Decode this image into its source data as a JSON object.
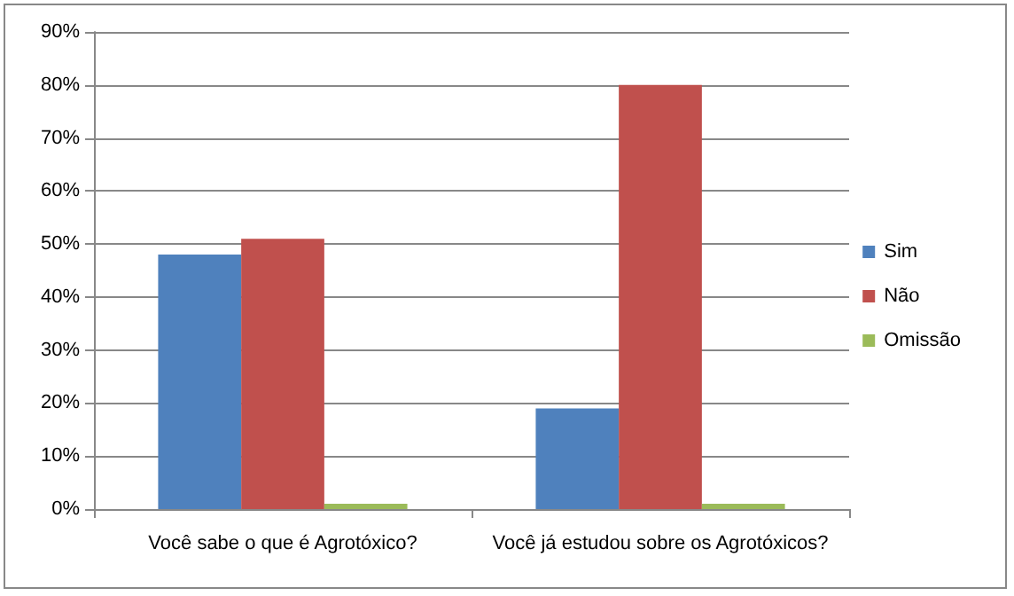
{
  "chart_data": {
    "type": "bar",
    "categories": [
      "Você sabe o que é Agrotóxico?",
      "Você já estudou sobre os Agrotóxicos?"
    ],
    "series": [
      {
        "name": "Sim",
        "color": "#4f81bd",
        "values": [
          48,
          19
        ]
      },
      {
        "name": "Não",
        "color": "#c0504d",
        "values": [
          51,
          80
        ]
      },
      {
        "name": "Omissão",
        "color": "#9bbb59",
        "values": [
          1,
          1
        ]
      }
    ],
    "ylim": [
      0,
      90
    ],
    "yticks": [
      {
        "value": 0,
        "label": "0%"
      },
      {
        "value": 10,
        "label": "10%"
      },
      {
        "value": 20,
        "label": "20%"
      },
      {
        "value": 30,
        "label": "30%"
      },
      {
        "value": 40,
        "label": "40%"
      },
      {
        "value": 50,
        "label": "50%"
      },
      {
        "value": 60,
        "label": "60%"
      },
      {
        "value": 70,
        "label": "70%"
      },
      {
        "value": 80,
        "label": "80%"
      },
      {
        "value": 90,
        "label": "90%"
      }
    ],
    "grid": "y",
    "legend": "right"
  }
}
